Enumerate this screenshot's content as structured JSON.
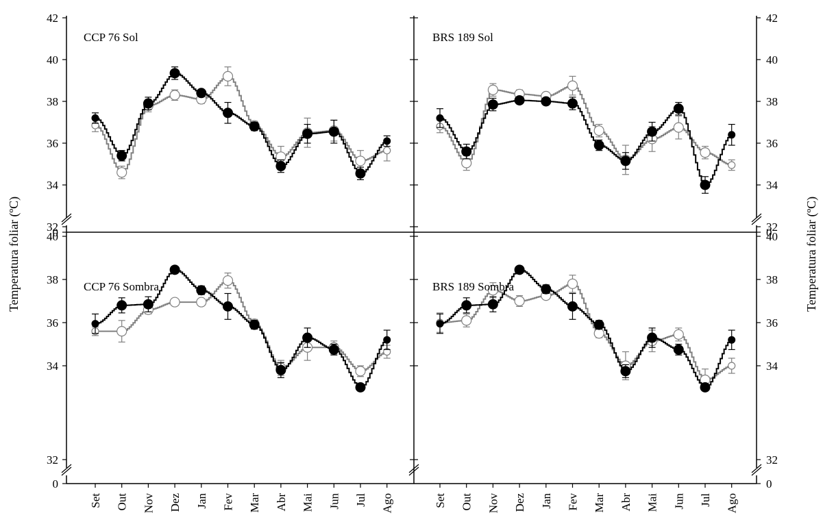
{
  "chart_data": {
    "type": "line",
    "ylabel": "Temperatura foliar (ºC)",
    "months": [
      "Set",
      "Out",
      "Nov",
      "Dez",
      "Jan",
      "Fev",
      "Mar",
      "Abr",
      "Mai",
      "Jun",
      "Jul",
      "Ago"
    ],
    "y_break_zero_label": "0",
    "colors": {
      "filled_series": "#000000",
      "open_series": "#808080",
      "open_marker_fill": "#ffffff"
    },
    "panels": [
      {
        "title": "CCP 76 Sol",
        "ylim": [
          32,
          42
        ],
        "yticks": [
          32,
          34,
          36,
          38,
          40,
          42
        ],
        "series": [
          {
            "marker": "filled",
            "values": [
              37.2,
              35.4,
              37.9,
              39.35,
              38.4,
              37.45,
              36.8,
              34.9,
              36.45,
              36.55,
              34.55,
              36.1
            ],
            "errors": [
              0.25,
              0.25,
              0.3,
              0.3,
              0.15,
              0.5,
              0.2,
              0.3,
              0.45,
              0.55,
              0.3,
              0.25
            ]
          },
          {
            "marker": "open",
            "values": [
              36.85,
              34.6,
              37.8,
              38.3,
              38.1,
              39.2,
              36.85,
              35.35,
              36.5,
              36.6,
              35.15,
              35.65
            ],
            "errors": [
              0.3,
              0.3,
              0.3,
              0.25,
              0.2,
              0.45,
              0.2,
              0.5,
              0.7,
              0.5,
              0.5,
              0.5
            ]
          }
        ]
      },
      {
        "title": "BRS 189 Sol",
        "ylim": [
          32,
          42
        ],
        "yticks": [
          32,
          34,
          36,
          38,
          40,
          42
        ],
        "series": [
          {
            "marker": "filled",
            "values": [
              37.2,
              35.6,
              37.85,
              38.05,
              38.0,
              37.9,
              35.9,
              35.15,
              36.55,
              37.65,
              34.0,
              36.4
            ],
            "errors": [
              0.45,
              0.35,
              0.3,
              0.15,
              0.1,
              0.3,
              0.25,
              0.4,
              0.45,
              0.3,
              0.4,
              0.5
            ]
          },
          {
            "marker": "open",
            "values": [
              36.8,
              35.05,
              38.55,
              38.35,
              38.25,
              38.75,
              36.6,
              35.2,
              36.2,
              36.75,
              35.55,
              34.95
            ],
            "errors": [
              0.3,
              0.35,
              0.3,
              0.2,
              0.1,
              0.45,
              0.3,
              0.7,
              0.6,
              0.55,
              0.3,
              0.25
            ]
          }
        ]
      },
      {
        "title": "CCP 76 Sombra",
        "ylim": [
          32,
          42
        ],
        "yticks": [
          32,
          34,
          36,
          38,
          40
        ],
        "series": [
          {
            "marker": "filled",
            "values": [
              35.95,
              36.8,
              36.85,
              38.45,
              37.5,
              36.75,
              35.9,
              33.8,
              35.3,
              34.75,
              33.0,
              35.2
            ],
            "errors": [
              0.45,
              0.35,
              0.35,
              0.15,
              0.2,
              0.6,
              0.2,
              0.35,
              0.45,
              0.25,
              0.15,
              0.45
            ]
          },
          {
            "marker": "open",
            "values": [
              35.6,
              35.6,
              36.6,
              36.95,
              36.95,
              37.95,
              35.95,
              33.9,
              34.85,
              34.85,
              33.75,
              34.65
            ],
            "errors": [
              0.2,
              0.5,
              0.2,
              0.1,
              0.15,
              0.35,
              0.2,
              0.35,
              0.6,
              0.3,
              0.25,
              0.3
            ]
          }
        ]
      },
      {
        "title": "BRS 189 Sombra",
        "ylim": [
          32,
          42
        ],
        "yticks": [
          32,
          34,
          36,
          38,
          40
        ],
        "series": [
          {
            "marker": "filled",
            "values": [
              35.95,
              36.8,
              36.85,
              38.45,
              37.55,
              36.75,
              35.9,
              33.75,
              35.3,
              34.75,
              33.0,
              35.2
            ],
            "errors": [
              0.45,
              0.35,
              0.35,
              0.15,
              0.2,
              0.6,
              0.2,
              0.3,
              0.45,
              0.25,
              0.15,
              0.45
            ]
          },
          {
            "marker": "open",
            "values": [
              36.0,
              36.1,
              37.5,
              37.0,
              37.25,
              37.8,
              35.5,
              34.0,
              35.15,
              35.45,
              33.35,
              34.0
            ],
            "errors": [
              0.45,
              0.3,
              0.35,
              0.25,
              0.15,
              0.4,
              0.2,
              0.65,
              0.5,
              0.3,
              0.5,
              0.35
            ]
          }
        ]
      }
    ]
  }
}
